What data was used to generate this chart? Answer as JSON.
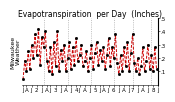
{
  "title": "Evapotranspiration  per Day  (Inches)",
  "ylabel_left": "Milwaukee\nWeather",
  "background_color": "#ffffff",
  "line_color": "#cc0000",
  "marker_color": "#000000",
  "grid_color": "#999999",
  "values": [
    0.04,
    0.18,
    0.1,
    0.25,
    0.12,
    0.3,
    0.2,
    0.38,
    0.22,
    0.42,
    0.15,
    0.36,
    0.28,
    0.4,
    0.18,
    0.1,
    0.28,
    0.08,
    0.32,
    0.14,
    0.4,
    0.1,
    0.26,
    0.18,
    0.3,
    0.1,
    0.2,
    0.32,
    0.12,
    0.28,
    0.15,
    0.35,
    0.18,
    0.22,
    0.3,
    0.14,
    0.18,
    0.25,
    0.1,
    0.2,
    0.3,
    0.12,
    0.24,
    0.32,
    0.15,
    0.26,
    0.18,
    0.28,
    0.12,
    0.22,
    0.35,
    0.14,
    0.28,
    0.2,
    0.38,
    0.16,
    0.08,
    0.22,
    0.1,
    0.28,
    0.14,
    0.32,
    0.1,
    0.24,
    0.38,
    0.16,
    0.1,
    0.2,
    0.08,
    0.14,
    0.28,
    0.1,
    0.18,
    0.3,
    0.12,
    0.22,
    0.1,
    0.28,
    0.12
  ],
  "vline_positions": [
    12,
    26,
    40,
    53,
    64,
    75
  ],
  "ylim": [
    0.0,
    0.5
  ],
  "yticks": [
    0.1,
    0.2,
    0.3,
    0.4,
    0.5
  ],
  "ytick_labels": [
    ".1",
    ".2",
    ".3",
    ".4",
    ".5"
  ],
  "x_tick_labels": [
    "J",
    "A",
    "J",
    "2",
    "J",
    "A",
    "J",
    "3",
    "J",
    "A",
    "J",
    "4",
    "J",
    "A",
    "J",
    "5",
    "J",
    "A",
    "J",
    "6",
    "J",
    "A",
    "J",
    "7",
    "J",
    "A",
    "J",
    "8",
    "J"
  ],
  "title_fontsize": 5.5,
  "tick_fontsize": 4.0,
  "label_fontsize": 4.5
}
